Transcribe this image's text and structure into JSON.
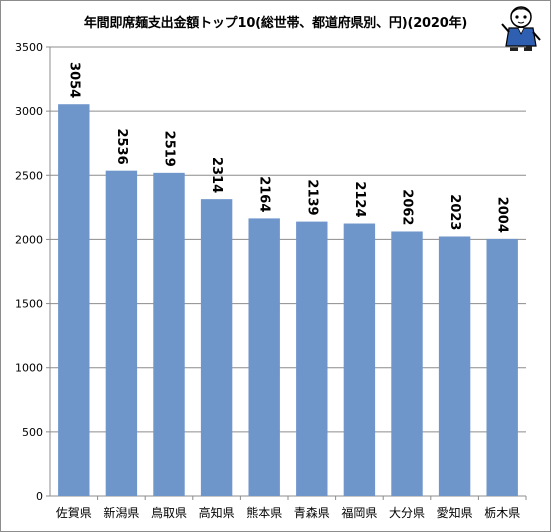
{
  "chart_data": {
    "type": "bar",
    "title": "年間即席麺支出金額トップ10(総世帯、都道府県別、円)(2020年)",
    "categories": [
      "佐賀県",
      "新潟県",
      "鳥取県",
      "高知県",
      "熊本県",
      "青森県",
      "福岡県",
      "大分県",
      "愛知県",
      "栃木県"
    ],
    "values": [
      3054,
      2536,
      2519,
      2314,
      2164,
      2139,
      2124,
      2062,
      2023,
      2004
    ],
    "yticks": [
      "0",
      "500",
      "1000",
      "1500",
      "2000",
      "2500",
      "3000",
      "3500"
    ],
    "xlabel": "",
    "ylabel": "",
    "ylim": [
      0,
      3500
    ],
    "grid": true,
    "bar_color": "#6f96cb",
    "grid_color": "#8c8c8c"
  },
  "mascot": {
    "icon": "mascot-character-icon"
  }
}
